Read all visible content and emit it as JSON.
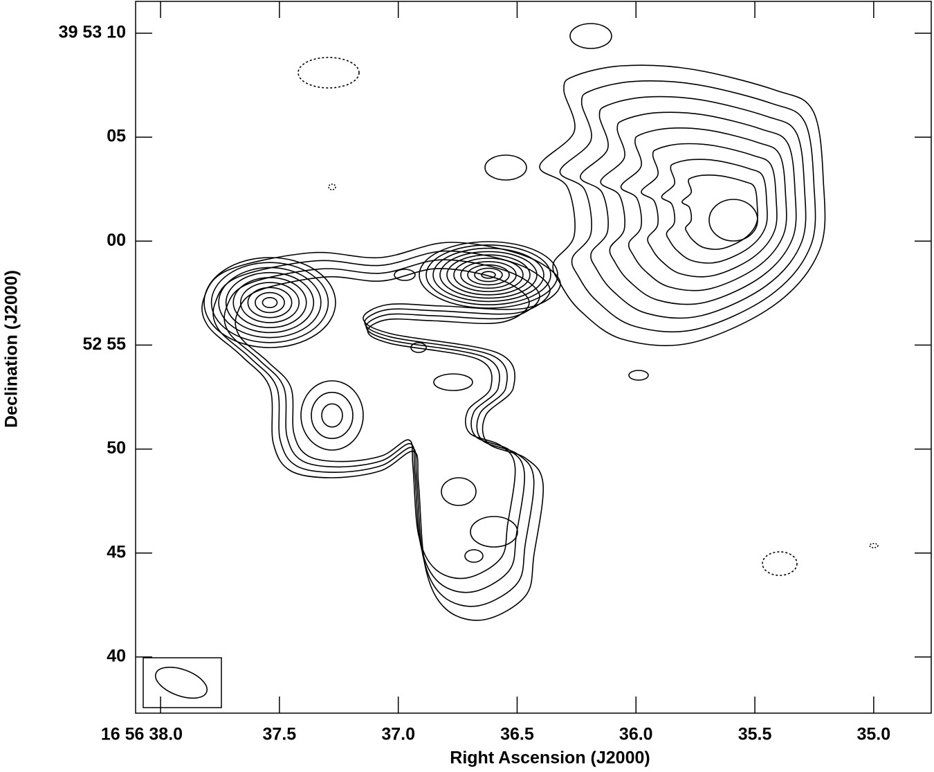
{
  "chart_data": {
    "type": "contour",
    "x_label": "Right Ascension (J2000)",
    "y_label": "Declination (J2000)",
    "xlim": [
      38.105,
      34.758
    ],
    "ylim": [
      37.3,
      71.53
    ],
    "xticks": [
      {
        "value": 38.0,
        "label": "16 56 38.0"
      },
      37.5,
      {
        "value": 37.0,
        "label": "37.0"
      },
      36.5,
      {
        "value": 36.0,
        "label": "36.0"
      },
      35.5,
      {
        "value": 35.0,
        "label": "35.0"
      }
    ],
    "yticks": [
      {
        "value": 70,
        "label": "39 53 10"
      },
      {
        "value": 65,
        "label": "05"
      },
      {
        "value": 60,
        "label": "00"
      },
      {
        "value": 55,
        "label": "52 55"
      },
      50,
      45,
      40
    ]
  }
}
